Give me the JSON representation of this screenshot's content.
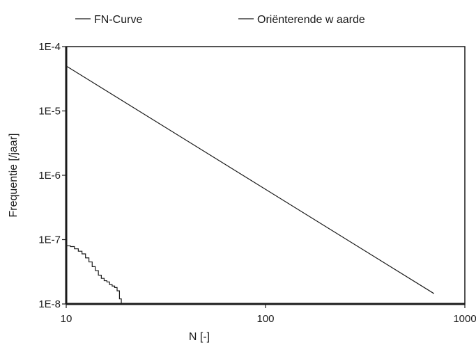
{
  "chart_data": {
    "type": "line",
    "x_scale": "log",
    "y_scale": "log",
    "xlim": [
      10,
      1000
    ],
    "ylim": [
      1e-08,
      0.0001
    ],
    "xlabel": "N [-]",
    "ylabel": "Frequentie [/jaar]",
    "x_ticks": [
      {
        "value": 10,
        "label": "10"
      },
      {
        "value": 100,
        "label": "100"
      },
      {
        "value": 1000,
        "label": "1000"
      }
    ],
    "y_ticks": [
      {
        "value": 0.0001,
        "label": "1E-4"
      },
      {
        "value": 1e-05,
        "label": "1E-5"
      },
      {
        "value": 1e-06,
        "label": "1E-6"
      },
      {
        "value": 1e-07,
        "label": "1E-7"
      },
      {
        "value": 1e-08,
        "label": "1E-8"
      }
    ],
    "grid": false,
    "legend_position": "top",
    "series": [
      {
        "name": "FN-Curve",
        "color": "#1a1a1a",
        "step": true,
        "x": [
          10,
          10.5,
          11,
          11.5,
          12,
          12.5,
          13,
          13.5,
          14,
          14.5,
          15,
          15.5,
          16,
          16.5,
          17,
          17.5,
          18,
          18.5,
          18.9
        ],
        "y": [
          8e-08,
          7.8e-08,
          7.2e-08,
          6.6e-08,
          6e-08,
          5.2e-08,
          4.5e-08,
          3.8e-08,
          3.3e-08,
          2.8e-08,
          2.5e-08,
          2.3e-08,
          2.2e-08,
          2e-08,
          1.9e-08,
          1.8e-08,
          1.6e-08,
          1.2e-08,
          1e-08
        ]
      },
      {
        "name": "Oriënterende w aarde",
        "color": "#1a1a1a",
        "step": false,
        "x": [
          10,
          700
        ],
        "y": [
          5e-05,
          1.45e-08
        ]
      }
    ]
  }
}
